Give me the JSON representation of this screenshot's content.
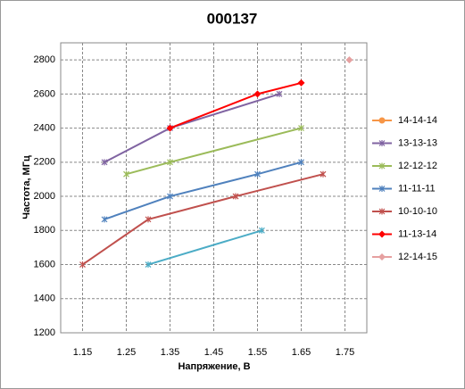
{
  "chart_data": {
    "type": "scatter",
    "title": "000137",
    "x_label": "Напряжение, В",
    "y_label": "Частота,  МГц",
    "xlim": [
      1.1,
      1.8
    ],
    "xticks": [
      1.15,
      1.25,
      1.35,
      1.45,
      1.55,
      1.65,
      1.75
    ],
    "ylim": [
      1200,
      2900
    ],
    "yticks": [
      1200,
      1400,
      1600,
      1800,
      2000,
      2200,
      2400,
      2600,
      2800
    ],
    "grid": true,
    "legend": "right",
    "series": [
      {
        "name": "14-14-14",
        "color": "#f79646",
        "marker": "circle",
        "x": [],
        "values": []
      },
      {
        "name": "13-13-13",
        "color": "#8064a2",
        "marker": "star",
        "x": [
          1.2,
          1.35,
          1.6
        ],
        "values": [
          2200,
          2400,
          2600
        ]
      },
      {
        "name": "12-12-12",
        "color": "#9bbb59",
        "marker": "star",
        "x": [
          1.25,
          1.35,
          1.65
        ],
        "values": [
          2130,
          2200,
          2400
        ]
      },
      {
        "name": "11-11-11",
        "color": "#4f81bd",
        "marker": "star",
        "x": [
          1.2,
          1.35,
          1.55,
          1.65
        ],
        "values": [
          1865,
          2000,
          2130,
          2200
        ]
      },
      {
        "name": "10-10-10",
        "color": "#c0504d",
        "marker": "star",
        "x": [
          1.15,
          1.3,
          1.5,
          1.7
        ],
        "values": [
          1600,
          1865,
          2000,
          2130
        ]
      },
      {
        "name": "11-13-14",
        "color": "#ff0000",
        "marker": "diamond",
        "x": [
          1.35,
          1.55,
          1.65
        ],
        "values": [
          2400,
          2600,
          2665
        ]
      },
      {
        "name": "12-14-15",
        "color": "#e6a0a0",
        "marker": "diamond",
        "x": [
          1.76
        ],
        "values": [
          2800
        ]
      },
      {
        "name": null,
        "color": "#4bacc6",
        "marker": "star",
        "x": [
          1.3,
          1.56
        ],
        "values": [
          1600,
          1800
        ]
      }
    ]
  }
}
